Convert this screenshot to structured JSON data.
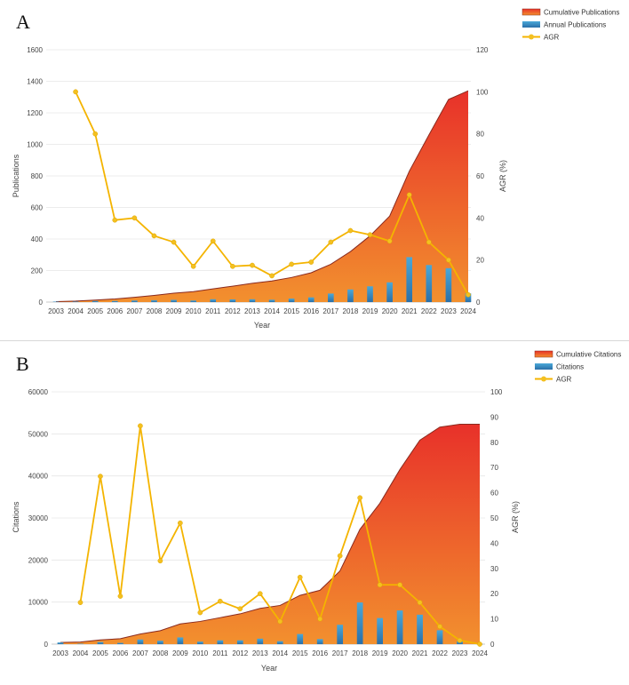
{
  "colors": {
    "area_top": "#e8312a",
    "area_bottom": "#f2902e",
    "area_edge": "#8a2a1e",
    "bar_top": "#4aa8d8",
    "bar_bottom": "#2a6fa8",
    "agr_line": "#f4b400",
    "agr_marker": "#f4c020",
    "grid": "#e6e6e6"
  },
  "chart_data": [
    {
      "type": "bar",
      "panel_label": "A",
      "xlabel": "Year",
      "ylabel": "Publications",
      "y2label": "AGR (%)",
      "ylim": [
        0,
        1600
      ],
      "y2lim": [
        0,
        120
      ],
      "yticks": [
        "0",
        "200",
        "400",
        "600",
        "800",
        "1000",
        "1200",
        "1400",
        "1600"
      ],
      "y2ticks": [
        "0",
        "20",
        "40",
        "60",
        "80",
        "100",
        "120"
      ],
      "categories": [
        "2003",
        "2004",
        "2005",
        "2006",
        "2007",
        "2008",
        "2009",
        "2010",
        "2011",
        "2012",
        "2013",
        "2014",
        "2015",
        "2016",
        "2017",
        "2018",
        "2019",
        "2020",
        "2021",
        "2022",
        "2023",
        "2024"
      ],
      "series": [
        {
          "name": "Cumulative Publications",
          "kind": "area",
          "axis": "left",
          "values": [
            3,
            6,
            13,
            20,
            30,
            42,
            56,
            66,
            84,
            101,
            119,
            134,
            156,
            186,
            240,
            320,
            420,
            545,
            830,
            1060,
            1285,
            1340
          ]
        },
        {
          "name": "Annual Publications",
          "kind": "bar",
          "axis": "left",
          "values": [
            3,
            3,
            7,
            7,
            10,
            12,
            14,
            10,
            18,
            17,
            18,
            15,
            22,
            30,
            54,
            80,
            100,
            125,
            285,
            235,
            215,
            55
          ]
        },
        {
          "name": "AGR",
          "kind": "line",
          "axis": "right",
          "values": [
            null,
            100,
            80,
            39,
            40,
            31.5,
            28.5,
            17,
            29,
            17,
            17.5,
            12.5,
            18,
            19,
            28.5,
            34,
            32,
            29,
            51,
            28.5,
            20,
            3.5
          ]
        }
      ],
      "legend": [
        "Cumulative Publications",
        "Annual Publications",
        "AGR"
      ]
    },
    {
      "type": "bar",
      "panel_label": "B",
      "xlabel": "Year",
      "ylabel": "Citations",
      "y2label": "AGR (%)",
      "ylim": [
        0,
        60000
      ],
      "y2lim": [
        0,
        100
      ],
      "yticks": [
        "0",
        "10000",
        "20000",
        "30000",
        "40000",
        "50000",
        "60000"
      ],
      "y2ticks": [
        "0",
        "10",
        "20",
        "30",
        "40",
        "50",
        "60",
        "70",
        "80",
        "90",
        "100"
      ],
      "categories": [
        "2003",
        "2004",
        "2005",
        "2006",
        "2007",
        "2008",
        "2009",
        "2010",
        "2011",
        "2012",
        "2013",
        "2014",
        "2015",
        "2016",
        "2017",
        "2018",
        "2019",
        "2020",
        "2021",
        "2022",
        "2023",
        "2024"
      ],
      "series": [
        {
          "name": "Cumulative Citations",
          "kind": "area",
          "axis": "left",
          "values": [
            400,
            500,
            1000,
            1300,
            2400,
            3200,
            4800,
            5400,
            6300,
            7200,
            8500,
            9200,
            11600,
            12800,
            17400,
            27300,
            33500,
            41500,
            48500,
            51600,
            52300,
            52300
          ]
        },
        {
          "name": "Citations",
          "kind": "bar",
          "axis": "left",
          "values": [
            400,
            100,
            500,
            300,
            1100,
            800,
            1600,
            600,
            900,
            900,
            1300,
            700,
            2400,
            1200,
            4600,
            9900,
            6200,
            8000,
            7000,
            3300,
            700,
            50
          ]
        },
        {
          "name": "AGR",
          "kind": "line",
          "axis": "right",
          "values": [
            null,
            16.5,
            66.5,
            19,
            86.5,
            33,
            48,
            12.5,
            17,
            14,
            20,
            9,
            26.5,
            10,
            35,
            58,
            23.5,
            23.5,
            16.5,
            7,
            1.5,
            0
          ]
        }
      ],
      "legend": [
        "Cumulative Citations",
        "Citations",
        "AGR"
      ]
    }
  ]
}
